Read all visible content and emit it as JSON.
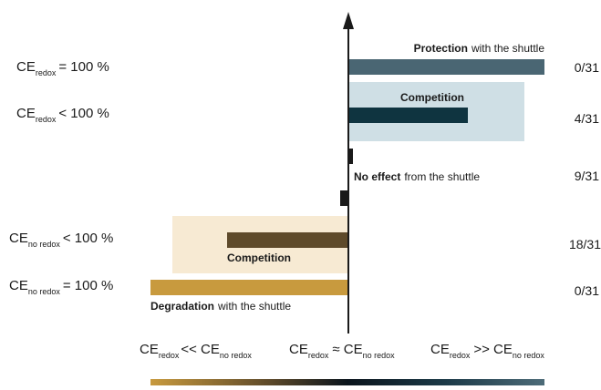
{
  "rows": [
    {
      "label": {
        "main": "CE",
        "sub": "redox",
        "rest": "= 100 %"
      },
      "count": "0/31"
    },
    {
      "label": {
        "main": "CE",
        "sub": "redox",
        "rest": "< 100 %"
      },
      "count": "4/31"
    },
    {
      "count": "9/31"
    },
    {
      "label": {
        "main": "CE",
        "sub": "no redox",
        "rest": "< 100 %"
      },
      "count": "18/31"
    },
    {
      "label": {
        "main": "CE",
        "sub": "no redox",
        "rest": "= 100 %"
      },
      "count": "0/31"
    }
  ],
  "bar_labels": {
    "protection": {
      "bold": "Protection",
      "rest": "with the shuttle"
    },
    "competition_top": "Competition",
    "no_effect": {
      "bold": "No effect",
      "rest": "from the shuttle"
    },
    "competition_bottom": "Competition",
    "degradation": {
      "bold": "Degradation",
      "rest": "with the shuttle"
    }
  },
  "axis_labels": [
    {
      "main": "CE",
      "sub": "redox",
      "op": "<< CE",
      "sub2": "no redox"
    },
    {
      "main": "CE",
      "sub": "redox",
      "op": "≈ CE",
      "sub2": "no redox"
    },
    {
      "main": "CE",
      "sub": "redox",
      "op": ">> CE",
      "sub2": "no redox"
    }
  ]
}
